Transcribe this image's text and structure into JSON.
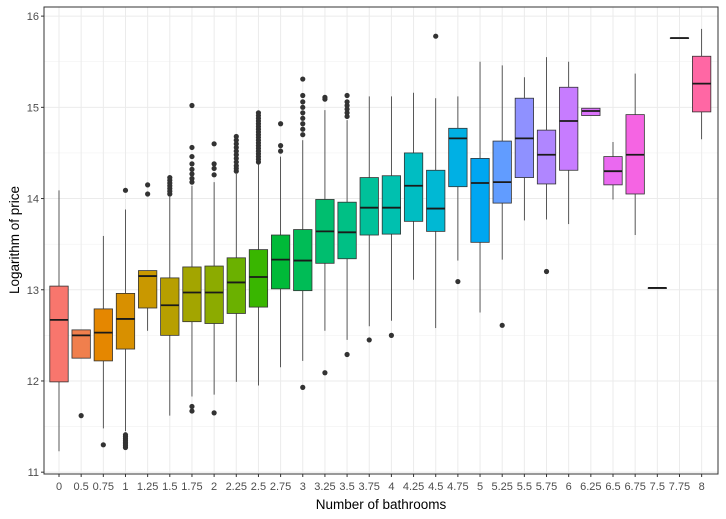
{
  "chart_data": {
    "type": "boxplot",
    "xlabel": "Number of bathrooms",
    "ylabel": "Logarithm of price",
    "ylim": [
      10.98,
      16.1
    ],
    "y_ticks": [
      11,
      12,
      13,
      14,
      15,
      16
    ],
    "grid": true,
    "legend": "none",
    "categories": [
      "0",
      "0.5",
      "0.75",
      "1",
      "1.25",
      "1.5",
      "1.75",
      "2",
      "2.25",
      "2.5",
      "2.75",
      "3",
      "3.25",
      "3.5",
      "3.75",
      "4",
      "4.25",
      "4.5",
      "4.75",
      "5",
      "5.25",
      "5.5",
      "5.75",
      "6",
      "6.25",
      "6.5",
      "6.75",
      "7.5",
      "7.75",
      "8"
    ],
    "boxes": [
      {
        "category": "0",
        "color": "#F8766D",
        "whisker_low": 11.23,
        "q1": 11.99,
        "median": 12.67,
        "q3": 13.04,
        "whisker_high": 14.09,
        "outliers": []
      },
      {
        "category": "0.5",
        "color": "#F07F4D",
        "whisker_low": 12.25,
        "q1": 12.25,
        "median": 12.5,
        "q3": 12.56,
        "whisker_high": 12.56,
        "outliers": [
          11.62
        ]
      },
      {
        "category": "0.75",
        "color": "#E58700",
        "whisker_low": 11.48,
        "q1": 12.22,
        "median": 12.53,
        "q3": 12.79,
        "whisker_high": 13.59,
        "outliers": [
          11.3
        ]
      },
      {
        "category": "1",
        "color": "#D89000",
        "whisker_low": 11.45,
        "q1": 12.35,
        "median": 12.68,
        "q3": 12.96,
        "whisker_high": 13.88,
        "outliers": [
          14.09,
          11.27,
          11.29,
          11.31,
          11.33,
          11.35,
          11.37,
          11.39,
          11.41
        ]
      },
      {
        "category": "1.25",
        "color": "#C99800",
        "whisker_low": 12.55,
        "q1": 12.8,
        "median": 13.15,
        "q3": 13.21,
        "whisker_high": 13.21,
        "outliers": [
          14.05,
          14.15
        ]
      },
      {
        "category": "1.5",
        "color": "#B79F00",
        "whisker_low": 11.62,
        "q1": 12.5,
        "median": 12.83,
        "q3": 13.13,
        "whisker_high": 14.02,
        "outliers": [
          14.05,
          14.08,
          14.11,
          14.14,
          14.17,
          14.2,
          14.23
        ]
      },
      {
        "category": "1.75",
        "color": "#A3A500",
        "whisker_low": 11.83,
        "q1": 12.65,
        "median": 12.97,
        "q3": 13.25,
        "whisker_high": 14.14,
        "outliers": [
          14.18,
          14.22,
          14.27,
          14.32,
          14.38,
          14.46,
          14.56,
          15.02,
          11.67,
          11.72
        ]
      },
      {
        "category": "2",
        "color": "#8CAB00",
        "whisker_low": 11.85,
        "q1": 12.63,
        "median": 12.97,
        "q3": 13.26,
        "whisker_high": 14.18,
        "outliers": [
          14.26,
          14.33,
          14.38,
          14.6,
          11.65
        ]
      },
      {
        "category": "2.25",
        "color": "#6BB100",
        "whisker_low": 11.99,
        "q1": 12.74,
        "median": 13.08,
        "q3": 13.35,
        "whisker_high": 14.27,
        "outliers": [
          14.3,
          14.33,
          14.36,
          14.4,
          14.44,
          14.48,
          14.52,
          14.56,
          14.6,
          14.64,
          14.68
        ]
      },
      {
        "category": "2.5",
        "color": "#39B600",
        "whisker_low": 11.95,
        "q1": 12.81,
        "median": 13.14,
        "q3": 13.44,
        "whisker_high": 14.38,
        "outliers": [
          14.4,
          14.43,
          14.46,
          14.49,
          14.52,
          14.55,
          14.58,
          14.61,
          14.64,
          14.67,
          14.7,
          14.73,
          14.76,
          14.79,
          14.82,
          14.85,
          14.88,
          14.91,
          14.94
        ]
      },
      {
        "category": "2.75",
        "color": "#00BA38",
        "whisker_low": 12.15,
        "q1": 13.01,
        "median": 13.33,
        "q3": 13.6,
        "whisker_high": 14.46,
        "outliers": [
          14.52,
          14.58,
          14.82
        ]
      },
      {
        "category": "3",
        "color": "#00BC56",
        "whisker_low": 12.22,
        "q1": 12.99,
        "median": 13.32,
        "q3": 13.66,
        "whisker_high": 14.64,
        "outliers": [
          14.7,
          14.76,
          14.82,
          14.88,
          14.94,
          15.0,
          15.06,
          15.13,
          15.31,
          11.93
        ]
      },
      {
        "category": "3.25",
        "color": "#00BE6F",
        "whisker_low": 12.55,
        "q1": 13.29,
        "median": 13.64,
        "q3": 13.99,
        "whisker_high": 14.97,
        "outliers": [
          15.09,
          15.11,
          12.09
        ]
      },
      {
        "category": "3.5",
        "color": "#00C085",
        "whisker_low": 12.45,
        "q1": 13.34,
        "median": 13.63,
        "q3": 13.96,
        "whisker_high": 14.86,
        "outliers": [
          14.9,
          14.94,
          14.98,
          15.02,
          15.06,
          15.13,
          12.29
        ]
      },
      {
        "category": "3.75",
        "color": "#00C19A",
        "whisker_low": 12.6,
        "q1": 13.6,
        "median": 13.9,
        "q3": 14.23,
        "whisker_high": 15.12,
        "outliers": [
          12.45
        ]
      },
      {
        "category": "4",
        "color": "#00C0AF",
        "whisker_low": 12.66,
        "q1": 13.61,
        "median": 13.9,
        "q3": 14.25,
        "whisker_high": 15.12,
        "outliers": [
          12.5
        ]
      },
      {
        "category": "4.25",
        "color": "#00BDC2",
        "whisker_low": 13.11,
        "q1": 13.75,
        "median": 14.14,
        "q3": 14.5,
        "whisker_high": 15.16,
        "outliers": []
      },
      {
        "category": "4.5",
        "color": "#00B8D4",
        "whisker_low": 12.58,
        "q1": 13.64,
        "median": 13.89,
        "q3": 14.31,
        "whisker_high": 15.1,
        "outliers": [
          15.78
        ]
      },
      {
        "category": "4.75",
        "color": "#00B0E4",
        "whisker_low": 13.32,
        "q1": 14.13,
        "median": 14.66,
        "q3": 14.77,
        "whisker_high": 15.12,
        "outliers": [
          13.09
        ]
      },
      {
        "category": "5",
        "color": "#00A6F1",
        "whisker_low": 12.75,
        "q1": 13.52,
        "median": 14.17,
        "q3": 14.44,
        "whisker_high": 15.5,
        "outliers": []
      },
      {
        "category": "5.25",
        "color": "#619CFF",
        "whisker_low": 13.33,
        "q1": 13.95,
        "median": 14.18,
        "q3": 14.63,
        "whisker_high": 15.46,
        "outliers": [
          12.61
        ]
      },
      {
        "category": "5.5",
        "color": "#8F91FF",
        "whisker_low": 13.76,
        "q1": 14.23,
        "median": 14.66,
        "q3": 15.1,
        "whisker_high": 15.33,
        "outliers": []
      },
      {
        "category": "5.75",
        "color": "#B086FF",
        "whisker_low": 13.77,
        "q1": 14.16,
        "median": 14.48,
        "q3": 14.75,
        "whisker_high": 15.55,
        "outliers": [
          13.2
        ]
      },
      {
        "category": "6",
        "color": "#C77CFF",
        "whisker_low": 13.72,
        "q1": 14.31,
        "median": 14.85,
        "q3": 15.22,
        "whisker_high": 15.5,
        "outliers": []
      },
      {
        "category": "6.25",
        "color": "#DB72FB",
        "whisker_low": 14.91,
        "q1": 14.91,
        "median": 14.96,
        "q3": 14.99,
        "whisker_high": 14.99,
        "outliers": []
      },
      {
        "category": "6.5",
        "color": "#EA69F0",
        "whisker_low": 13.99,
        "q1": 14.15,
        "median": 14.3,
        "q3": 14.46,
        "whisker_high": 14.62,
        "outliers": []
      },
      {
        "category": "6.75",
        "color": "#F564E3",
        "whisker_low": 13.6,
        "q1": 14.05,
        "median": 14.48,
        "q3": 14.92,
        "whisker_high": 15.37,
        "outliers": []
      },
      {
        "category": "7.5",
        "color": "#FC61D4",
        "whisker_low": 13.02,
        "q1": 13.02,
        "median": 13.02,
        "q3": 13.02,
        "whisker_high": 13.02,
        "outliers": []
      },
      {
        "category": "7.75",
        "color": "#FF62C1",
        "whisker_low": 15.76,
        "q1": 15.76,
        "median": 15.76,
        "q3": 15.76,
        "whisker_high": 15.76,
        "outliers": []
      },
      {
        "category": "8",
        "color": "#FF67A4",
        "whisker_low": 14.65,
        "q1": 14.95,
        "median": 15.26,
        "q3": 15.56,
        "whisker_high": 15.86,
        "outliers": []
      }
    ]
  }
}
